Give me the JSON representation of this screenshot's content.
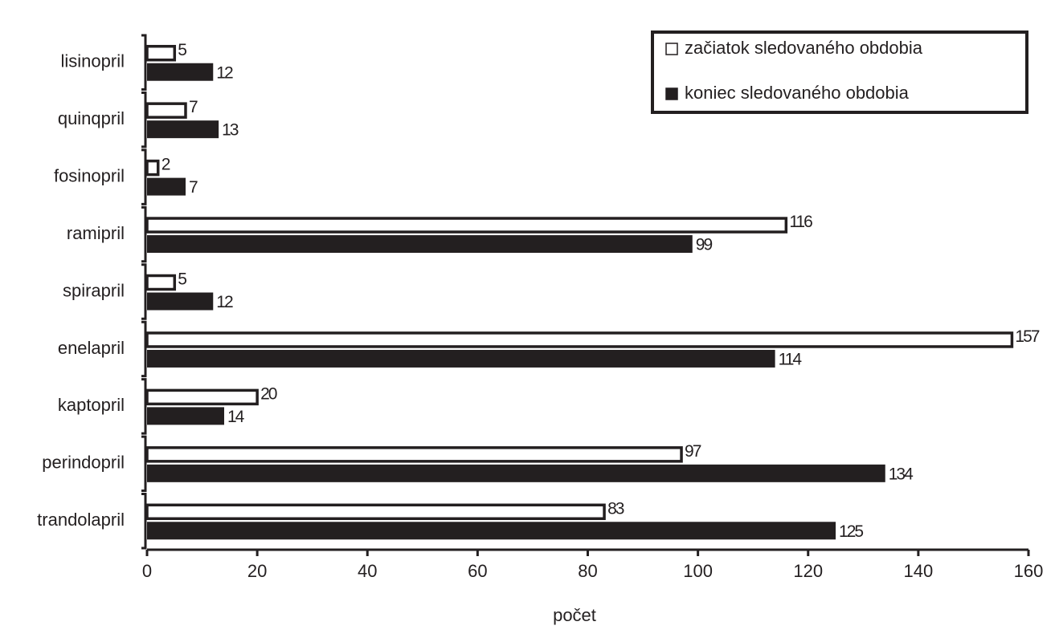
{
  "chart_data": {
    "type": "bar",
    "orientation": "horizontal",
    "x_label": "počet",
    "categories": [
      "lisinopril",
      "quinqpril",
      "fosinopril",
      "ramipril",
      "spirapril",
      "enelapril",
      "kaptopril",
      "perindopril",
      "trandolapril"
    ],
    "series": [
      {
        "name": "začiatok sledovaného obdobia",
        "color": "#ffffff",
        "values": [
          5,
          7,
          2,
          116,
          5,
          157,
          20,
          97,
          83
        ]
      },
      {
        "name": "koniec sledovaného obdobia",
        "color": "#231f20",
        "values": [
          12,
          13,
          7,
          99,
          12,
          114,
          14,
          134,
          125
        ]
      }
    ],
    "xlim": [
      0,
      160
    ],
    "xticks": [
      0,
      20,
      40,
      60,
      80,
      100,
      120,
      140,
      160
    ],
    "legend": "top-right",
    "grid": false
  }
}
